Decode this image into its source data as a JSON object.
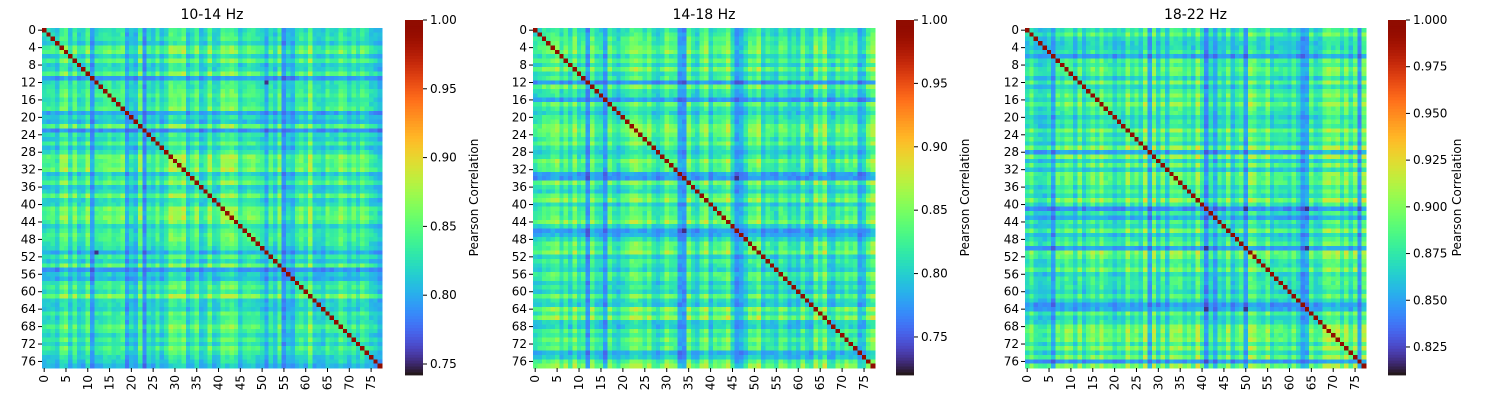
{
  "chart_data": [
    {
      "type": "heatmap",
      "title": "10-14 Hz",
      "n": 78,
      "seed": 11,
      "xticks": [
        "0",
        "5",
        "10",
        "15",
        "20",
        "25",
        "30",
        "35",
        "40",
        "45",
        "50",
        "55",
        "60",
        "65",
        "70",
        "75"
      ],
      "yticks": [
        "0",
        "4",
        "8",
        "12",
        "16",
        "20",
        "24",
        "28",
        "32",
        "36",
        "40",
        "44",
        "48",
        "52",
        "56",
        "60",
        "64",
        "68",
        "72",
        "76"
      ],
      "colorbar": {
        "label": "Pearson Correlation",
        "vmin": 0.742,
        "vmax": 1.0,
        "ticks": [
          "0.75",
          "0.80",
          "0.85",
          "0.90",
          "0.95",
          "1.00"
        ]
      },
      "low_rows": [
        11,
        19,
        21,
        23,
        51,
        55,
        57,
        77
      ],
      "very_low_rows": [
        12,
        51
      ]
    },
    {
      "type": "heatmap",
      "title": "14-18 Hz",
      "n": 78,
      "seed": 23,
      "xticks": [
        "0",
        "5",
        "10",
        "15",
        "20",
        "25",
        "30",
        "35",
        "40",
        "45",
        "50",
        "55",
        "60",
        "65",
        "70",
        "75"
      ],
      "yticks": [
        "0",
        "4",
        "8",
        "12",
        "16",
        "20",
        "24",
        "28",
        "32",
        "36",
        "40",
        "44",
        "48",
        "52",
        "56",
        "60",
        "64",
        "68",
        "72",
        "76"
      ],
      "colorbar": {
        "label": "Pearson Correlation",
        "vmin": 0.72,
        "vmax": 1.0,
        "ticks": [
          "0.75",
          "0.80",
          "0.85",
          "0.90",
          "0.95",
          "1.00"
        ]
      },
      "low_rows": [
        12,
        16,
        33,
        34,
        46,
        47,
        74,
        75
      ],
      "very_low_rows": [
        34,
        46
      ]
    },
    {
      "type": "heatmap",
      "title": "18-22 Hz",
      "n": 78,
      "seed": 37,
      "xticks": [
        "0",
        "5",
        "10",
        "15",
        "20",
        "25",
        "30",
        "35",
        "40",
        "45",
        "50",
        "55",
        "60",
        "65",
        "70",
        "75"
      ],
      "yticks": [
        "0",
        "4",
        "8",
        "12",
        "16",
        "20",
        "24",
        "28",
        "32",
        "36",
        "40",
        "44",
        "48",
        "52",
        "56",
        "60",
        "64",
        "68",
        "72",
        "76"
      ],
      "colorbar": {
        "label": "Pearson Correlation",
        "vmin": 0.81,
        "vmax": 1.0,
        "ticks": [
          "0.825",
          "0.850",
          "0.875",
          "0.900",
          "0.925",
          "0.950",
          "0.975",
          "1.000"
        ]
      },
      "low_rows": [
        6,
        28,
        41,
        43,
        47,
        50,
        63,
        64,
        76
      ],
      "very_low_rows": [
        41,
        50,
        64
      ]
    }
  ]
}
